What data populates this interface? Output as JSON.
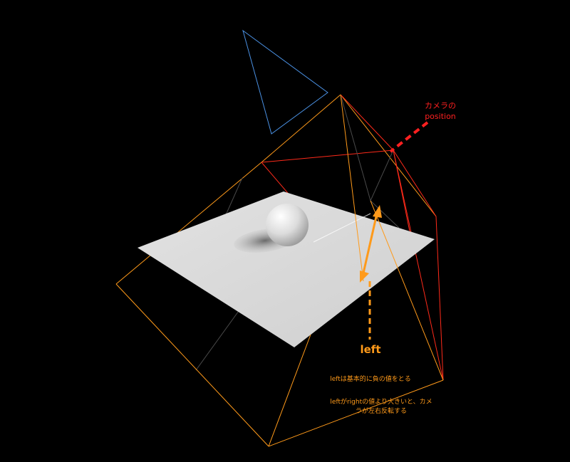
{
  "labels": {
    "camera_position_line1": "カメラの",
    "camera_position_line2": "position",
    "left": "left",
    "note_negative": "leftは基本的に負の値をとる",
    "note_flip_line1": "leftがrightの値より大きいと、カメ",
    "note_flip_line2": "ラが左右反転する"
  },
  "colors": {
    "background": "#000000",
    "frustum_outer": "#ff9a1a",
    "frustum_inner": "#ff2a1a",
    "camera_marker": "#4a90e2",
    "accent_red": "#ff2020",
    "accent_orange": "#ff9a1a",
    "plane": "#d9d9d9",
    "sphere": "#e8e8e8"
  }
}
